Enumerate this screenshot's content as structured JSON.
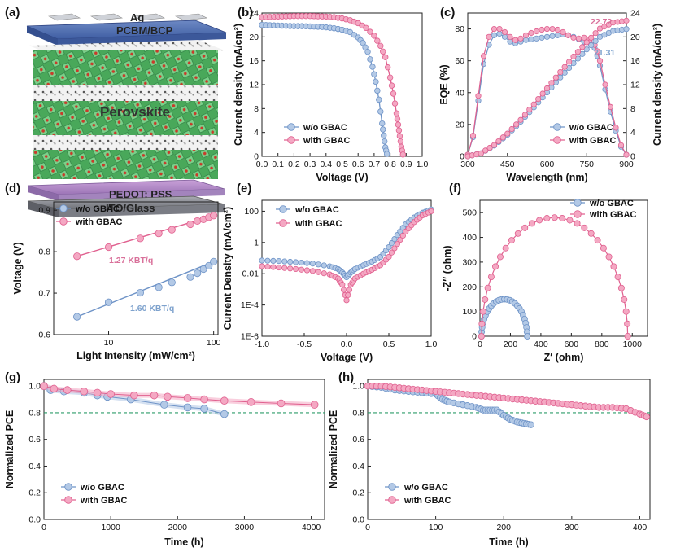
{
  "colors": {
    "pink": "#e0608f",
    "pink_fill": "#f4a8c3",
    "blue": "#6e93c7",
    "blue_fill": "#b3c9e6",
    "ref_line": "#2e9c6a",
    "annot_pink": "#d9709a",
    "annot_blue": "#7ea2cd"
  },
  "panel_a": {
    "label": "(a)",
    "layers": {
      "top": "Ag",
      "etl": "PCBM/BCP",
      "absorber": "Perovskite",
      "htl": "PEDOT: PSS",
      "substrate": "ITO/Glass"
    }
  },
  "legend": {
    "without": "w/o GBAC",
    "with": "with GBAC"
  },
  "chart_data": [
    {
      "id": "b",
      "label": "(b)",
      "type": "line",
      "xlabel": "Voltage (V)",
      "ylabel": "Current density (mA/cm²)",
      "xlim": [
        0,
        1.0
      ],
      "ylim": [
        0,
        24
      ],
      "xticks": [
        "0.0",
        "0.1",
        "0.2",
        "0.3",
        "0.4",
        "0.5",
        "0.6",
        "0.7",
        "0.8",
        "0.9",
        "1.0"
      ],
      "yticks": [
        "0",
        "4",
        "8",
        "12",
        "16",
        "20",
        "24"
      ],
      "series": [
        {
          "name": "w/o GBAC",
          "x": [
            0.0,
            0.05,
            0.1,
            0.15,
            0.2,
            0.25,
            0.3,
            0.35,
            0.4,
            0.45,
            0.5,
            0.55,
            0.6,
            0.63,
            0.66,
            0.69,
            0.71,
            0.73,
            0.75,
            0.76,
            0.77,
            0.78
          ],
          "y": [
            22.0,
            21.95,
            21.9,
            21.85,
            21.8,
            21.8,
            21.75,
            21.7,
            21.6,
            21.45,
            21.2,
            20.8,
            19.9,
            19.0,
            17.5,
            15.0,
            12.5,
            9.5,
            5.5,
            3.5,
            1.5,
            0.4
          ]
        },
        {
          "name": "with GBAC",
          "x": [
            0.0,
            0.05,
            0.1,
            0.15,
            0.2,
            0.25,
            0.3,
            0.35,
            0.4,
            0.45,
            0.5,
            0.55,
            0.6,
            0.65,
            0.7,
            0.74,
            0.77,
            0.8,
            0.82,
            0.84,
            0.85,
            0.86,
            0.87,
            0.88
          ],
          "y": [
            23.3,
            23.35,
            23.4,
            23.45,
            23.5,
            23.5,
            23.5,
            23.45,
            23.4,
            23.3,
            23.1,
            22.8,
            22.3,
            21.5,
            20.2,
            18.5,
            16.6,
            13.2,
            10.5,
            7.2,
            5.3,
            3.4,
            1.6,
            0.3
          ]
        }
      ]
    },
    {
      "id": "c",
      "label": "(c)",
      "type": "line",
      "xlabel": "Wavelength (nm)",
      "ylabel": "EQE (%)",
      "ylabel_right": "Current density (mA/cm²)",
      "xlim": [
        300,
        900
      ],
      "ylim": [
        0,
        90
      ],
      "ylim_right": [
        0,
        24
      ],
      "xticks": [
        "300",
        "450",
        "600",
        "750",
        "900"
      ],
      "yticks": [
        "0",
        "20",
        "40",
        "60",
        "80"
      ],
      "yticks_right": [
        "0",
        "4",
        "8",
        "12",
        "16",
        "20",
        "24"
      ],
      "annotations": [
        "22.72",
        "21.31"
      ],
      "series": [
        {
          "name": "w/o GBAC",
          "axis": "left",
          "x": [
            300,
            320,
            340,
            360,
            380,
            400,
            420,
            440,
            460,
            480,
            500,
            520,
            540,
            560,
            580,
            600,
            620,
            640,
            660,
            680,
            700,
            720,
            740,
            760,
            780,
            790,
            800,
            820,
            840,
            860,
            880,
            900
          ],
          "y": [
            1,
            12,
            35,
            58,
            70,
            76,
            77,
            75,
            72,
            71,
            72,
            73,
            73.5,
            74,
            74.5,
            75,
            75.5,
            76,
            76.5,
            76,
            75,
            73.5,
            72,
            71.5,
            68,
            63,
            57,
            42,
            28,
            16,
            6,
            1
          ]
        },
        {
          "name": "with GBAC",
          "axis": "left",
          "x": [
            300,
            320,
            340,
            360,
            380,
            400,
            420,
            440,
            460,
            480,
            500,
            520,
            540,
            560,
            580,
            600,
            620,
            640,
            660,
            680,
            700,
            720,
            740,
            760,
            780,
            790,
            800,
            820,
            840,
            860,
            880,
            900
          ],
          "y": [
            1,
            13,
            38,
            63,
            75,
            80,
            80,
            78,
            75,
            73,
            74,
            76,
            77.5,
            78.5,
            79.5,
            80,
            80,
            79.5,
            78,
            76,
            74.5,
            74,
            74.5,
            73,
            70,
            66,
            60,
            45,
            31,
            18,
            7,
            1
          ]
        },
        {
          "name": "w/o GBAC",
          "axis": "right",
          "x": [
            300,
            350,
            400,
            450,
            500,
            550,
            600,
            650,
            700,
            750,
            800,
            850,
            900
          ],
          "y": [
            0,
            0.5,
            1.8,
            3.6,
            5.8,
            8.2,
            10.7,
            13.2,
            15.6,
            17.9,
            20.0,
            21.0,
            21.31
          ]
        },
        {
          "name": "with GBAC",
          "axis": "right",
          "x": [
            300,
            350,
            400,
            450,
            500,
            550,
            600,
            650,
            700,
            750,
            800,
            850,
            900
          ],
          "y": [
            0,
            0.5,
            1.9,
            3.8,
            6.1,
            8.7,
            11.4,
            14.1,
            16.7,
            19.1,
            21.4,
            22.4,
            22.72
          ]
        }
      ]
    },
    {
      "id": "d",
      "label": "(d)",
      "type": "scatter",
      "xlabel": "Light Intensity (mW/cm²)",
      "ylabel": "Voltage (V)",
      "xscale": "log",
      "xlim": [
        3,
        110
      ],
      "ylim": [
        0.6,
        0.92
      ],
      "xticks": [
        "10",
        "100"
      ],
      "yticks": [
        "0.6",
        "0.7",
        "0.8",
        "0.9"
      ],
      "annotations": [
        "1.27 KBT/q",
        "1.60 KBT/q"
      ],
      "series": [
        {
          "name": "w/o GBAC",
          "x": [
            5,
            10,
            20,
            30,
            40,
            60,
            70,
            80,
            90,
            100
          ],
          "y": [
            0.643,
            0.678,
            0.701,
            0.714,
            0.726,
            0.739,
            0.748,
            0.758,
            0.766,
            0.776
          ]
        },
        {
          "name": "with GBAC",
          "x": [
            5,
            10,
            20,
            30,
            40,
            60,
            70,
            80,
            90,
            100
          ],
          "y": [
            0.789,
            0.811,
            0.832,
            0.844,
            0.853,
            0.866,
            0.874,
            0.878,
            0.883,
            0.887
          ]
        }
      ]
    },
    {
      "id": "e",
      "label": "(e)",
      "type": "line",
      "xlabel": "Voltage (V)",
      "ylabel": "Current Density (mA/cm²)",
      "yscale": "log",
      "xlim": [
        -1.0,
        1.0
      ],
      "ylim": [
        1e-06,
        500
      ],
      "xticks": [
        "-1.0",
        "-0.5",
        "0.0",
        "0.5",
        "1.0"
      ],
      "yticks": [
        "1E-6",
        "1E-4",
        "0.01",
        "1",
        "100"
      ],
      "series": [
        {
          "name": "w/o GBAC",
          "x": [
            -1.0,
            -0.8,
            -0.6,
            -0.4,
            -0.2,
            -0.1,
            -0.05,
            0.0,
            0.05,
            0.1,
            0.2,
            0.3,
            0.4,
            0.5,
            0.6,
            0.7,
            0.8,
            0.9,
            1.0
          ],
          "y": [
            0.07,
            0.065,
            0.055,
            0.045,
            0.03,
            0.02,
            0.012,
            0.006,
            0.012,
            0.02,
            0.035,
            0.06,
            0.12,
            0.5,
            3,
            15,
            40,
            80,
            130
          ]
        },
        {
          "name": "with GBAC",
          "x": [
            -1.0,
            -0.8,
            -0.6,
            -0.4,
            -0.2,
            -0.1,
            -0.05,
            0.0,
            0.05,
            0.1,
            0.2,
            0.3,
            0.4,
            0.5,
            0.6,
            0.7,
            0.8,
            0.9,
            1.0
          ],
          "y": [
            0.03,
            0.025,
            0.02,
            0.015,
            0.009,
            0.005,
            0.002,
            0.0002,
            0.002,
            0.005,
            0.01,
            0.018,
            0.035,
            0.12,
            0.8,
            5,
            20,
            55,
            100
          ]
        }
      ]
    },
    {
      "id": "f",
      "label": "(f)",
      "type": "scatter",
      "xlabel": "Z′ (ohm)",
      "ylabel": "-Z′′ (ohm)",
      "xlim": [
        0,
        1100
      ],
      "ylim": [
        0,
        550
      ],
      "xticks": [
        "0",
        "200",
        "400",
        "600",
        "800",
        "1000"
      ],
      "yticks": [
        "0",
        "100",
        "200",
        "300",
        "400",
        "500"
      ],
      "series": [
        {
          "name": "w/o GBAC",
          "center": 160,
          "radius": 150,
          "points": 26
        },
        {
          "name": "with GBAC",
          "center": 490,
          "radius": 480,
          "points": 30
        }
      ]
    },
    {
      "id": "g",
      "label": "(g)",
      "type": "scatter",
      "xlabel": "Time (h)",
      "ylabel": "Normalized PCE",
      "xlim": [
        0,
        4200
      ],
      "ylim": [
        0,
        1.05
      ],
      "xticks": [
        "0",
        "1000",
        "2000",
        "3000",
        "4000"
      ],
      "yticks": [
        "0.0",
        "0.2",
        "0.4",
        "0.6",
        "0.8",
        "1.0"
      ],
      "ref_line": 0.8,
      "series": [
        {
          "name": "w/o GBAC",
          "x": [
            0,
            100,
            300,
            600,
            800,
            950,
            1300,
            1800,
            2150,
            2400,
            2700
          ],
          "y": [
            1.0,
            0.97,
            0.96,
            0.95,
            0.93,
            0.92,
            0.9,
            0.86,
            0.84,
            0.83,
            0.79
          ]
        },
        {
          "name": "with GBAC",
          "x": [
            0,
            150,
            350,
            600,
            800,
            1000,
            1350,
            1650,
            1850,
            2150,
            2400,
            2700,
            3100,
            3550,
            4050
          ],
          "y": [
            1.0,
            0.98,
            0.97,
            0.96,
            0.95,
            0.94,
            0.93,
            0.93,
            0.92,
            0.91,
            0.9,
            0.89,
            0.88,
            0.87,
            0.86
          ]
        }
      ]
    },
    {
      "id": "h",
      "label": "(h)",
      "type": "line",
      "xlabel": "Time (h)",
      "ylabel": "Normalized PCE",
      "xlim": [
        0,
        415
      ],
      "ylim": [
        0,
        1.05
      ],
      "xticks": [
        "0",
        "100",
        "200",
        "300",
        "400"
      ],
      "yticks": [
        "0.0",
        "0.2",
        "0.4",
        "0.6",
        "0.8",
        "1.0"
      ],
      "ref_line": 0.8,
      "series": [
        {
          "name": "w/o GBAC",
          "x": [
            0,
            20,
            40,
            60,
            80,
            100,
            110,
            120,
            140,
            160,
            170,
            180,
            190,
            200,
            210,
            220,
            230,
            240
          ],
          "y": [
            1.0,
            0.99,
            0.97,
            0.96,
            0.95,
            0.94,
            0.9,
            0.88,
            0.86,
            0.84,
            0.82,
            0.82,
            0.82,
            0.78,
            0.75,
            0.73,
            0.72,
            0.71
          ]
        },
        {
          "name": "with GBAC",
          "x": [
            0,
            20,
            40,
            60,
            80,
            100,
            120,
            140,
            160,
            180,
            200,
            220,
            240,
            260,
            280,
            300,
            320,
            340,
            360,
            380,
            400,
            410
          ],
          "y": [
            1.0,
            1.0,
            0.99,
            0.98,
            0.97,
            0.96,
            0.95,
            0.94,
            0.93,
            0.92,
            0.91,
            0.9,
            0.89,
            0.88,
            0.87,
            0.86,
            0.85,
            0.84,
            0.84,
            0.83,
            0.79,
            0.77
          ]
        }
      ]
    }
  ]
}
